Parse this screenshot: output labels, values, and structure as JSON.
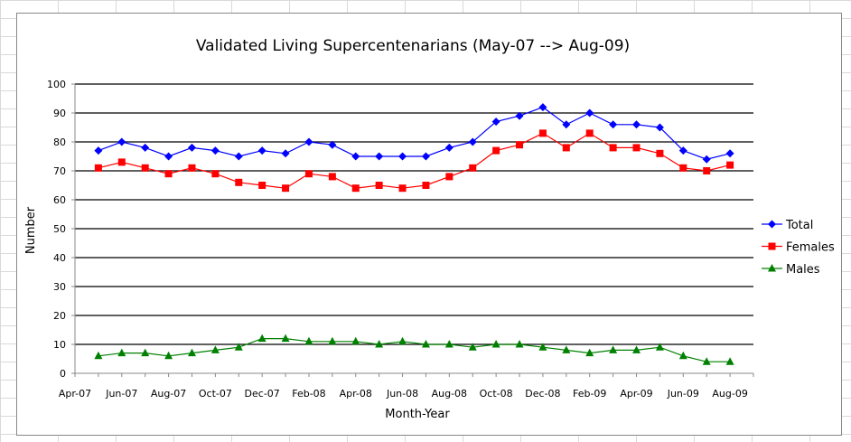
{
  "chart_data": {
    "type": "line",
    "title": "Validated Living Supercentenarians  (May-07 --> Aug-09)",
    "xlabel": "Month-Year",
    "ylabel": "Number",
    "ylim": [
      0,
      100
    ],
    "yticks": [
      0,
      10,
      20,
      30,
      40,
      50,
      60,
      70,
      80,
      90,
      100
    ],
    "xtick_labels": [
      "Apr-07",
      "Jun-07",
      "Aug-07",
      "Oct-07",
      "Dec-07",
      "Feb-08",
      "Apr-08",
      "Jun-08",
      "Aug-08",
      "Oct-08",
      "Dec-08",
      "Feb-09",
      "Apr-09",
      "Jun-09",
      "Aug-09"
    ],
    "x": [
      "May-07",
      "Jun-07",
      "Jul-07",
      "Aug-07",
      "Sep-07",
      "Oct-07",
      "Nov-07",
      "Dec-07",
      "Jan-08",
      "Feb-08",
      "Mar-08",
      "Apr-08",
      "May-08",
      "Jun-08",
      "Jul-08",
      "Aug-08",
      "Sep-08",
      "Oct-08",
      "Nov-08",
      "Dec-08",
      "Jan-09",
      "Feb-09",
      "Mar-09",
      "Apr-09",
      "May-09",
      "Jun-09",
      "Jul-09",
      "Aug-09"
    ],
    "grid": "horizontal major",
    "legend": "right",
    "series": [
      {
        "name": "Total",
        "color": "#0000ff",
        "marker": "diamond",
        "values": [
          77,
          80,
          78,
          75,
          78,
          77,
          75,
          77,
          76,
          80,
          79,
          75,
          75,
          75,
          75,
          78,
          80,
          87,
          89,
          92,
          86,
          90,
          86,
          86,
          85,
          77,
          74,
          76
        ]
      },
      {
        "name": "Females",
        "color": "#ff0000",
        "marker": "square",
        "values": [
          71,
          73,
          71,
          69,
          71,
          69,
          66,
          65,
          64,
          69,
          68,
          64,
          65,
          64,
          65,
          68,
          71,
          77,
          79,
          83,
          78,
          83,
          78,
          78,
          76,
          71,
          70,
          72
        ]
      },
      {
        "name": "Males",
        "color": "#008000",
        "marker": "triangle",
        "values": [
          6,
          7,
          7,
          6,
          7,
          8,
          9,
          12,
          12,
          11,
          11,
          11,
          10,
          11,
          10,
          10,
          9,
          10,
          10,
          9,
          8,
          7,
          8,
          8,
          9,
          6,
          4,
          4
        ]
      }
    ]
  }
}
